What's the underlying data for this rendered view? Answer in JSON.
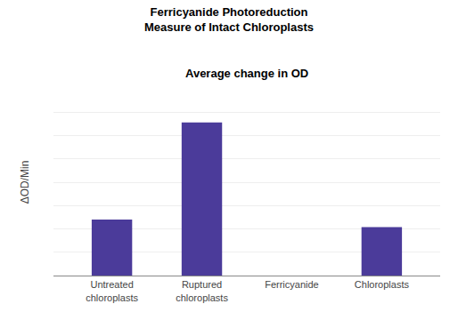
{
  "chart_data": {
    "type": "bar",
    "title": "Ferricyanide Photoreduction\nMeasure of Intact Chloroplasts",
    "subtitle": "Average change in OD",
    "ylabel": "ΔOD/Min",
    "categories": [
      "Untreated\nchloroplasts",
      "Ruptured\nchloroplasts",
      "Ferricyanide",
      "Chloroplasts"
    ],
    "values": [
      0.3,
      0.82,
      0.0,
      0.26
    ],
    "color": "#4B3B9A",
    "ylim": [
      0,
      1.0
    ],
    "yticks": [
      0,
      0.125,
      0.25,
      0.375,
      0.5,
      0.625,
      0.75,
      0.875,
      1.0
    ],
    "grid": true,
    "tick_labels": "x"
  }
}
